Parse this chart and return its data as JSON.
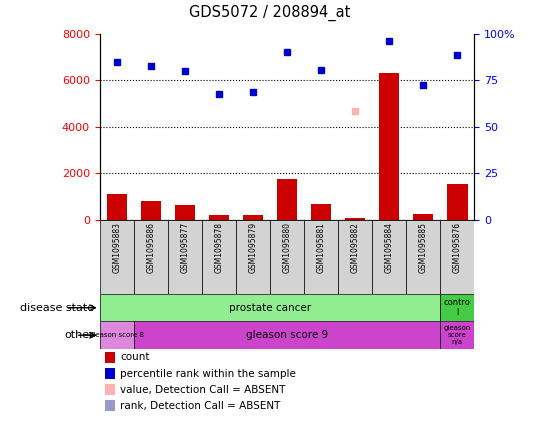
{
  "title": "GDS5072 / 208894_at",
  "samples": [
    "GSM1095883",
    "GSM1095886",
    "GSM1095877",
    "GSM1095878",
    "GSM1095879",
    "GSM1095880",
    "GSM1095881",
    "GSM1095882",
    "GSM1095884",
    "GSM1095885",
    "GSM1095876"
  ],
  "counts": [
    1100,
    800,
    650,
    200,
    220,
    1750,
    700,
    80,
    6300,
    250,
    1550
  ],
  "percentile_ranks": [
    6800,
    6600,
    6400,
    5400,
    5500,
    7200,
    6450,
    null,
    7700,
    5800,
    7100
  ],
  "absent_value": [
    null,
    null,
    null,
    null,
    null,
    null,
    null,
    4700,
    null,
    null,
    null
  ],
  "absent_rank": [
    null,
    null,
    null,
    null,
    null,
    null,
    null,
    4700,
    null,
    null,
    null
  ],
  "bar_color": "#cc0000",
  "dot_color": "#0000cc",
  "absent_value_color": "#ffb0b0",
  "absent_rank_color": "#9999cc",
  "ylim_left": [
    0,
    8000
  ],
  "ylim_right": [
    0,
    100
  ],
  "yticks_left": [
    0,
    2000,
    4000,
    6000,
    8000
  ],
  "yticks_right": [
    0,
    25,
    50,
    75,
    100
  ],
  "disease_state_color_green": "#90ee90",
  "disease_state_color_darkgreen": "#44cc44",
  "other_color_light": "#dd88dd",
  "other_color_dark": "#cc44cc",
  "sample_box_color": "#d3d3d3",
  "plot_bg": "#ffffff",
  "legend_items": [
    [
      "#cc0000",
      "count"
    ],
    [
      "#0000cc",
      "percentile rank within the sample"
    ],
    [
      "#ffb0b0",
      "value, Detection Call = ABSENT"
    ],
    [
      "#9999cc",
      "rank, Detection Call = ABSENT"
    ]
  ]
}
